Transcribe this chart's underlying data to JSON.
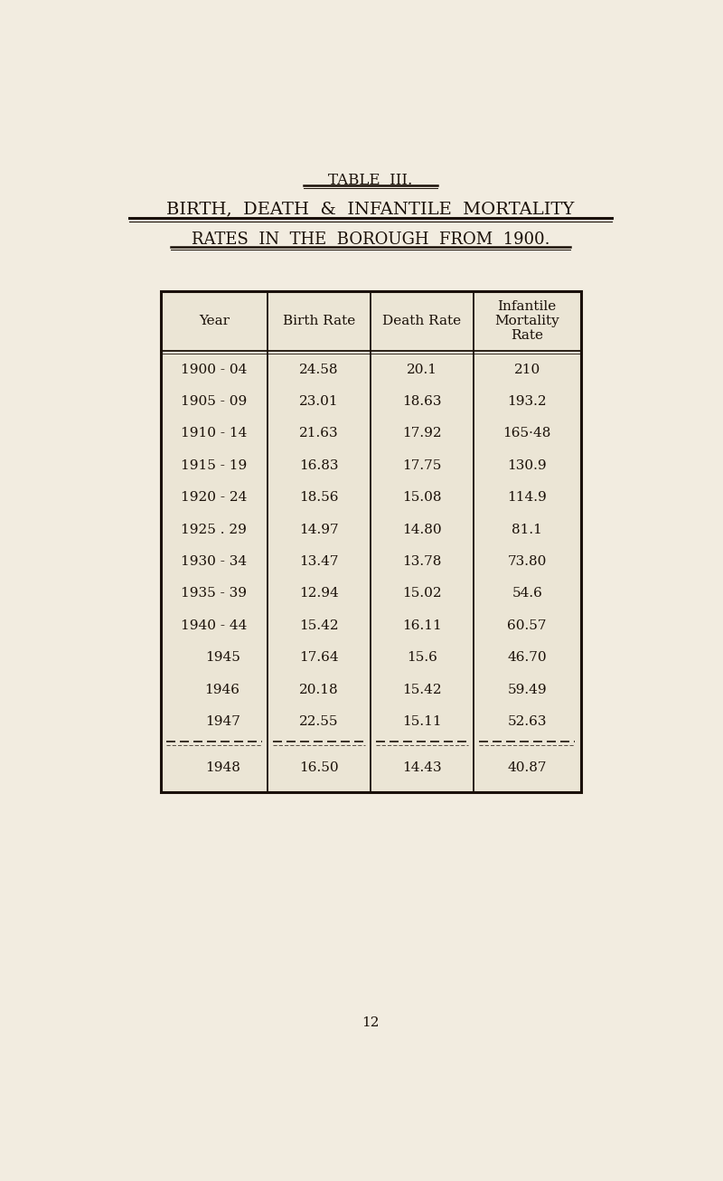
{
  "title_line1": "TABLE  III.",
  "title_line2": "BIRTH,  DEATH  &  INFANTILE  MORTALITY",
  "title_line3": "RATES  IN  THE  BOROUGH  FROM  1900.",
  "page_number": "12",
  "col_headers": [
    "Year",
    "Birth Rate",
    "Death Rate",
    "Infantile\nMortality\nRate"
  ],
  "rows": [
    [
      "1900 - 04",
      "24.58",
      "20.1",
      "210"
    ],
    [
      "1905 - 09",
      "23.01",
      "18.63",
      "193.2"
    ],
    [
      "1910 - 14",
      "21.63",
      "17.92",
      "165·48"
    ],
    [
      "1915 - 19",
      "16.83",
      "17.75",
      "130.9"
    ],
    [
      "1920 - 24",
      "18.56",
      "15.08",
      "114.9"
    ],
    [
      "1925 . 29",
      "14.97",
      "14.80",
      "81.1"
    ],
    [
      "1930 - 34",
      "13.47",
      "13.78",
      "73.80"
    ],
    [
      "1935 - 39",
      "12.94",
      "15.02",
      "54.6"
    ],
    [
      "1940 - 44",
      "15.42",
      "16.11",
      "60.57"
    ],
    [
      "1945",
      "17.64",
      "15.6",
      "46.70"
    ],
    [
      "1946",
      "20.18",
      "15.42",
      "59.49"
    ],
    [
      "1947",
      "22.55",
      "15.11",
      "52.63"
    ]
  ],
  "last_row": [
    "1948",
    "16.50",
    "14.43",
    "40.87"
  ],
  "bg_color": "#f2ece0",
  "text_color": "#1a1008",
  "table_bg": "#ebe5d5",
  "border_color": "#1a1008",
  "title1_fontsize": 12,
  "title2_fontsize": 14,
  "title3_fontsize": 13,
  "header_fontsize": 11,
  "data_fontsize": 11
}
